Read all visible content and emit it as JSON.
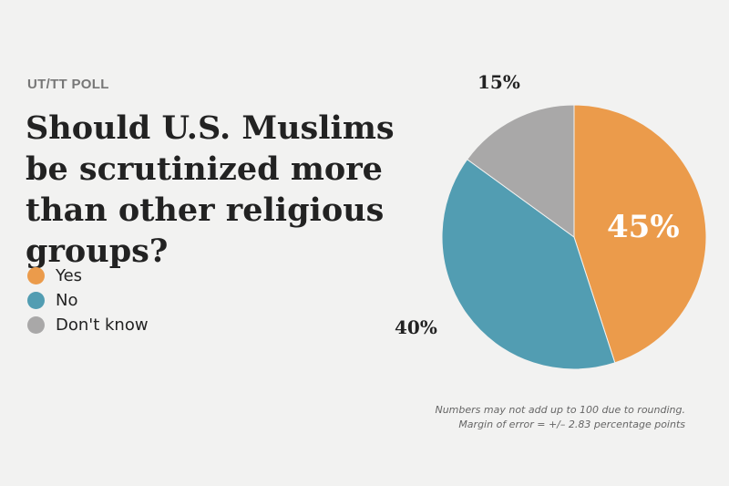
{
  "kicker": "UT/TT POLL",
  "title": "Should U.S. Muslims be scrutinized more than other religious groups?",
  "notes": [
    "Numbers may not add up to 100 due to rounding.",
    "Margin of error = +/– 2.83 percentage points"
  ],
  "chart_data": {
    "type": "pie",
    "title": "Should U.S. Muslims be scrutinized more than other religious groups?",
    "categories": [
      "Yes",
      "No",
      "Don't know"
    ],
    "values": [
      45,
      40,
      15
    ],
    "value_labels": [
      "45%",
      "40%",
      "15%"
    ],
    "colors": [
      "#eb9b4b",
      "#529db2",
      "#a9a8a8"
    ],
    "legend": "left"
  }
}
